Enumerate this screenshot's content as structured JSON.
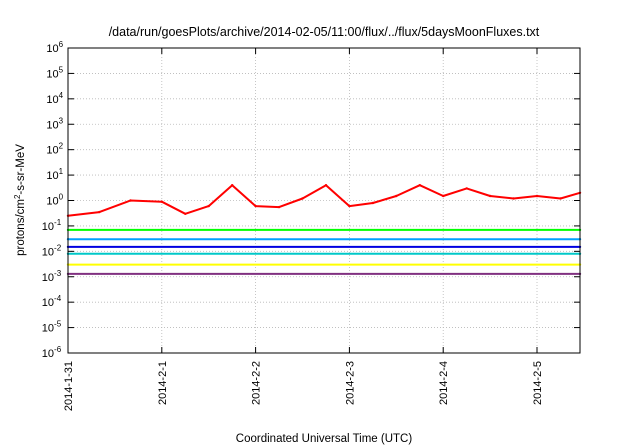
{
  "chart_data": {
    "type": "line",
    "title": "/data/run/goesPlots/archive/2014-02-05/11:00/flux/../flux/5daysMoonFluxes.txt",
    "xlabel": "Coordinated Universal Time (UTC)",
    "ylabel": "protons/cm2-s-sr-MeV",
    "ylabel_parts": {
      "pre": "protons/cm",
      "sup": "2",
      "post": "-s-sr-MeV"
    },
    "y_scale": "log",
    "ylim": [
      1e-06,
      1000000.0
    ],
    "y_ticks": [
      {
        "base": "10",
        "exp": "-6"
      },
      {
        "base": "10",
        "exp": "-5"
      },
      {
        "base": "10",
        "exp": "-4"
      },
      {
        "base": "10",
        "exp": "-3"
      },
      {
        "base": "10",
        "exp": "-2"
      },
      {
        "base": "10",
        "exp": "-1"
      },
      {
        "base": "10",
        "exp": "0"
      },
      {
        "base": "10",
        "exp": "1"
      },
      {
        "base": "10",
        "exp": "2"
      },
      {
        "base": "10",
        "exp": "3"
      },
      {
        "base": "10",
        "exp": "4"
      },
      {
        "base": "10",
        "exp": "5"
      },
      {
        "base": "10",
        "exp": "6"
      }
    ],
    "x_ticks": [
      "2014-1-31",
      "2014-2-1",
      "2014-2-2",
      "2014-2-3",
      "2014-2-4",
      "2014-2-5"
    ],
    "xlim": [
      "2014-01-31 00:00",
      "2014-02-05 11:00"
    ],
    "grid": true,
    "legend": "none",
    "series": [
      {
        "color": "#ff0000",
        "x": [
          "2014-01-31 00:00",
          "2014-01-31 08:00",
          "2014-01-31 16:00",
          "2014-02-01 00:00",
          "2014-02-01 06:00",
          "2014-02-01 12:00",
          "2014-02-01 18:00",
          "2014-02-02 00:00",
          "2014-02-02 06:00",
          "2014-02-02 12:00",
          "2014-02-02 18:00",
          "2014-02-03 00:00",
          "2014-02-03 06:00",
          "2014-02-03 12:00",
          "2014-02-03 18:00",
          "2014-02-04 00:00",
          "2014-02-04 06:00",
          "2014-02-04 12:00",
          "2014-02-04 18:00",
          "2014-02-05 00:00",
          "2014-02-05 06:00",
          "2014-02-05 11:00"
        ],
        "values": [
          0.25,
          0.35,
          1.0,
          0.9,
          0.3,
          0.6,
          4.0,
          0.6,
          0.55,
          1.2,
          4.0,
          0.6,
          0.8,
          1.5,
          4.0,
          1.5,
          3.0,
          1.5,
          1.2,
          1.5,
          1.2,
          2.0
        ]
      },
      {
        "color": "#00ff00",
        "x": [
          "2014-01-31 00:00",
          "2014-02-05 11:00"
        ],
        "values": [
          0.07,
          0.07
        ]
      },
      {
        "color": "#00a0ff",
        "x": [
          "2014-01-31 00:00",
          "2014-02-05 11:00"
        ],
        "values": [
          0.03,
          0.03
        ]
      },
      {
        "color": "#0000e0",
        "x": [
          "2014-01-31 00:00",
          "2014-02-05 11:00"
        ],
        "values": [
          0.015,
          0.015
        ]
      },
      {
        "color": "#00c8c8",
        "x": [
          "2014-01-31 00:00",
          "2014-02-05 11:00"
        ],
        "values": [
          0.008,
          0.008
        ]
      },
      {
        "color": "#ffff00",
        "x": [
          "2014-01-31 00:00",
          "2014-02-05 11:00"
        ],
        "values": [
          0.003,
          0.003
        ]
      },
      {
        "color": "#803080",
        "x": [
          "2014-01-31 00:00",
          "2014-02-05 11:00"
        ],
        "values": [
          0.0013,
          0.0013
        ]
      }
    ]
  }
}
